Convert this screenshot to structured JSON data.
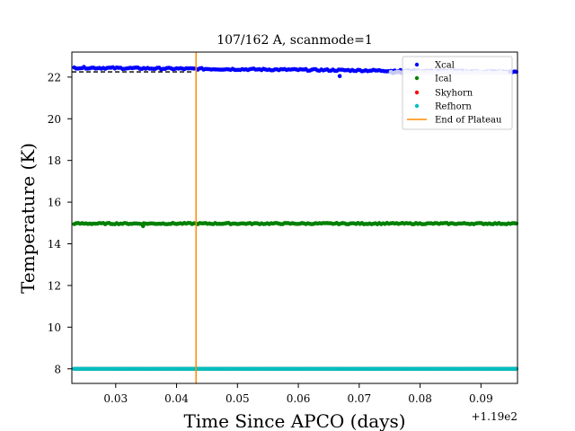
{
  "chart_data": {
    "type": "scatter",
    "title": "107/162 A, scanmode=1",
    "xlabel": "Time Since APCO (days)",
    "ylabel": "Temperature (K)",
    "x_offset_label": "+1.19e2",
    "xlim": [
      0.0228,
      0.096
    ],
    "ylim": [
      7.3,
      23.2
    ],
    "x_ticks": [
      0.03,
      0.04,
      0.05,
      0.06,
      0.07,
      0.08,
      0.09
    ],
    "x_tick_labels": [
      "0.03",
      "0.04",
      "0.05",
      "0.06",
      "0.07",
      "0.08",
      "0.09"
    ],
    "y_ticks": [
      8,
      10,
      12,
      14,
      16,
      18,
      20,
      22
    ],
    "y_tick_labels": [
      "8",
      "10",
      "12",
      "14",
      "16",
      "18",
      "20",
      "22"
    ],
    "grid": false,
    "legend_position": "top-right",
    "x_start": 0.0232,
    "x_end": 0.0958,
    "series": [
      {
        "name": "Xcal",
        "color": "#0000ff",
        "marker": "dot",
        "y_start": 22.45,
        "y_end": 22.25,
        "noise": 0.04,
        "outlier": {
          "x": 0.0668,
          "y": 22.05
        }
      },
      {
        "name": "Ical",
        "color": "#008000",
        "marker": "dot",
        "y_start": 14.97,
        "y_end": 14.97,
        "noise": 0.03,
        "outlier": {
          "x": 0.0345,
          "y": 14.85
        }
      },
      {
        "name": "Skyhorn",
        "color": "#ff0000",
        "marker": "dot",
        "y_start": 8.0,
        "y_end": 8.0,
        "noise": 0.0
      },
      {
        "name": "Refhorn",
        "color": "#00bfbf",
        "marker": "dot",
        "y_start": 8.0,
        "y_end": 8.0,
        "noise": 0.0
      }
    ],
    "faded_segment": {
      "color": "#c8c8f5",
      "x_from": 0.0752,
      "x_to": 0.0942,
      "y": 22.22
    },
    "reference_line": {
      "style": "dashed",
      "color": "#000000",
      "y": 22.25,
      "x_from": 0.0228,
      "x_to": 0.0425
    },
    "vertical_line": {
      "name": "End of Plateau",
      "color": "#ff8c00",
      "x": 0.0432
    }
  }
}
